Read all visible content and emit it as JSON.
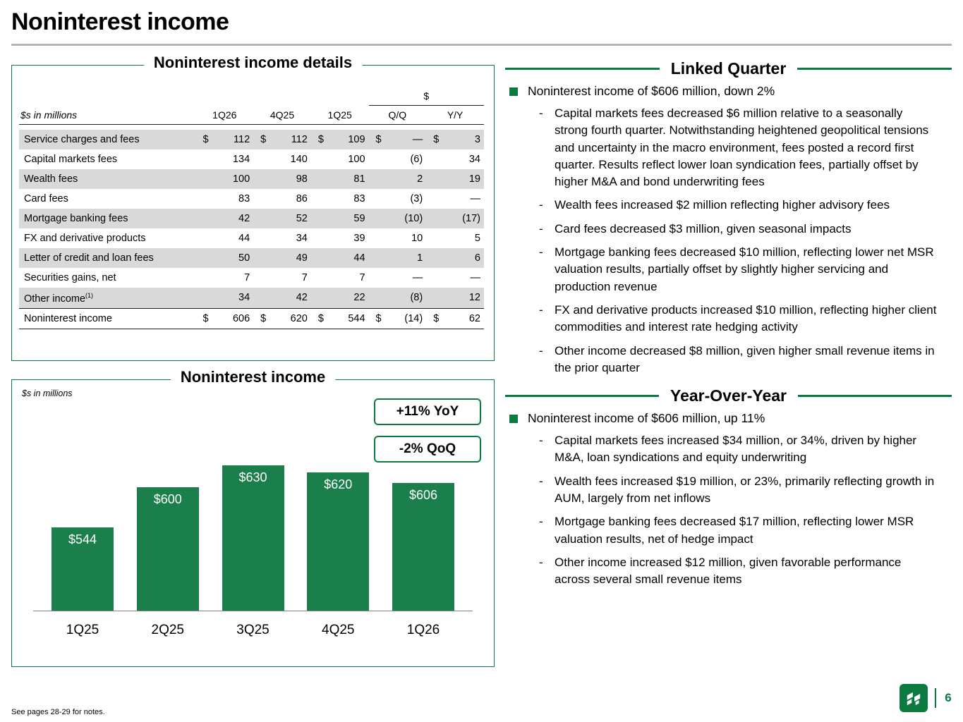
{
  "colors": {
    "accent_green": "#0b7a40",
    "bar_green": "#1a7f4b",
    "row_shade": "#d9d9d9",
    "rule_gray": "#b5b5b5"
  },
  "slide": {
    "title": "Noninterest income",
    "footnote": "See pages 28-29 for notes.",
    "page_number": "6"
  },
  "details_panel": {
    "title": "Noninterest income details",
    "units_label": "$s in millions",
    "dollar_header": "$",
    "columns": [
      "1Q26",
      "4Q25",
      "1Q25",
      "Q/Q",
      "Y/Y"
    ],
    "rows": [
      {
        "label": "Service charges and fees",
        "sup": "",
        "dollar": true,
        "values": [
          "112",
          "112",
          "109",
          "—",
          "3"
        ],
        "shaded": true,
        "total": false
      },
      {
        "label": "Capital markets fees",
        "sup": "",
        "dollar": false,
        "values": [
          "134",
          "140",
          "100",
          "(6)",
          "34"
        ],
        "shaded": false,
        "total": false
      },
      {
        "label": "Wealth fees",
        "sup": "",
        "dollar": false,
        "values": [
          "100",
          "98",
          "81",
          "2",
          "19"
        ],
        "shaded": true,
        "total": false
      },
      {
        "label": "Card fees",
        "sup": "",
        "dollar": false,
        "values": [
          "83",
          "86",
          "83",
          "(3)",
          "—"
        ],
        "shaded": false,
        "total": false
      },
      {
        "label": "Mortgage banking fees",
        "sup": "",
        "dollar": false,
        "values": [
          "42",
          "52",
          "59",
          "(10)",
          "(17)"
        ],
        "shaded": true,
        "total": false
      },
      {
        "label": "FX and derivative products",
        "sup": "",
        "dollar": false,
        "values": [
          "44",
          "34",
          "39",
          "10",
          "5"
        ],
        "shaded": false,
        "total": false
      },
      {
        "label": "Letter of credit and loan fees",
        "sup": "",
        "dollar": false,
        "values": [
          "50",
          "49",
          "44",
          "1",
          "6"
        ],
        "shaded": true,
        "total": false
      },
      {
        "label": "Securities gains, net",
        "sup": "",
        "dollar": false,
        "values": [
          "7",
          "7",
          "7",
          "—",
          "—"
        ],
        "shaded": false,
        "total": false
      },
      {
        "label": "Other income",
        "sup": "(1)",
        "dollar": false,
        "values": [
          "34",
          "42",
          "22",
          "(8)",
          "12"
        ],
        "shaded": true,
        "total": false
      },
      {
        "label": "Noninterest income",
        "sup": "",
        "dollar": true,
        "values": [
          "606",
          "620",
          "544",
          "(14)",
          "62"
        ],
        "shaded": false,
        "total": true
      }
    ]
  },
  "chart_panel": {
    "title": "Noninterest income",
    "units_label": "$s in millions",
    "badges": [
      "+11% YoY",
      "-2% QoQ"
    ]
  },
  "chart_data": {
    "type": "bar",
    "title": "Noninterest income",
    "xlabel": "",
    "ylabel": "$s in millions",
    "categories": [
      "1Q25",
      "2Q25",
      "3Q25",
      "4Q25",
      "1Q26"
    ],
    "values": [
      544,
      600,
      630,
      620,
      606
    ],
    "labels": [
      "$544",
      "$600",
      "$630",
      "$620",
      "$606"
    ],
    "ylim": [
      430,
      655
    ],
    "grid": false,
    "legend": "none",
    "bar_color": "#1a7f4b",
    "annotations": [
      "+11% YoY",
      "-2% QoQ"
    ]
  },
  "linked_quarter": {
    "title": "Linked Quarter",
    "bullet": "Noninterest income of $606 million, down 2%",
    "sub_bullets": [
      "Capital markets fees decreased $6 million relative to a seasonally strong fourth quarter. Notwithstanding heightened geopolitical tensions and uncertainty in the macro environment, fees posted a record first quarter. Results reflect lower loan syndication fees, partially offset by higher M&A and bond underwriting fees",
      "Wealth fees increased $2 million reflecting higher advisory fees",
      "Card fees decreased $3 million, given seasonal impacts",
      "Mortgage banking fees decreased $10 million, reflecting lower net MSR valuation results, partially offset by slightly higher servicing and production revenue",
      "FX and derivative products increased $10 million, reflecting higher client commodities and interest rate hedging activity",
      "Other income decreased $8 million, given higher small revenue items in the prior quarter"
    ]
  },
  "year_over_year": {
    "title": "Year-Over-Year",
    "bullet": "Noninterest income of $606 million, up 11%",
    "sub_bullets": [
      "Capital markets fees increased $34 million, or 34%, driven by higher M&A, loan syndications and equity underwriting",
      "Wealth fees increased $19 million, or 23%, primarily reflecting growth in AUM, largely from net inflows",
      "Mortgage banking fees decreased $17 million, reflecting lower MSR valuation results, net of hedge impact",
      "Other income increased $12 million, given favorable performance across several small revenue items"
    ]
  }
}
